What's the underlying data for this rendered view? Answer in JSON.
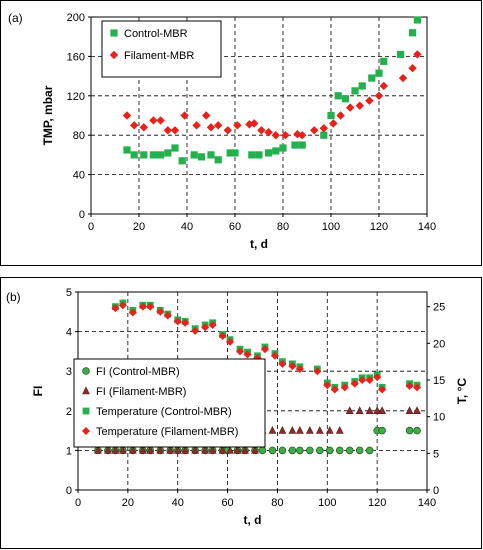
{
  "figure": {
    "panels": [
      "(a)",
      "(b)"
    ]
  },
  "colors": {
    "control": "#22b14c",
    "filament": "#e8221b",
    "fi_control": "#3fae49",
    "fi_filament": "#8b2c2c",
    "grid": "#000000"
  },
  "chart_data": [
    {
      "type": "scatter",
      "panel": "(a)",
      "xlabel": "t, d",
      "ylabel": "TMP, mbar",
      "xlim": [
        0,
        140
      ],
      "ylim": [
        0,
        200
      ],
      "xticks": [
        0,
        20,
        40,
        60,
        80,
        100,
        120,
        140
      ],
      "yticks": [
        0,
        40,
        80,
        120,
        160,
        200
      ],
      "grid": "dashed",
      "legend_position": "top-left",
      "series": [
        {
          "name": "Control-MBR",
          "marker": "square",
          "x": [
            15,
            18,
            22,
            26,
            29,
            32,
            35,
            38,
            43,
            46,
            50,
            53,
            58,
            60,
            67,
            70,
            74,
            77,
            80,
            85,
            88,
            97,
            100,
            103,
            106,
            110,
            113,
            117,
            120,
            122,
            129,
            134,
            136
          ],
          "y": [
            65,
            60,
            60,
            60,
            60,
            62,
            67,
            54,
            60,
            58,
            60,
            55,
            62,
            62,
            60,
            60,
            62,
            64,
            67,
            70,
            70,
            80,
            100,
            120,
            117,
            125,
            130,
            138,
            143,
            155,
            162,
            184,
            197
          ]
        },
        {
          "name": "Filament-MBR",
          "marker": "diamond",
          "x": [
            15,
            18,
            22,
            26,
            29,
            32,
            35,
            39,
            44,
            48,
            50,
            53,
            57,
            61,
            66,
            68,
            71,
            74,
            77,
            81,
            86,
            88,
            93,
            97,
            101,
            104,
            108,
            112,
            116,
            120,
            122,
            130,
            134,
            136
          ],
          "y": [
            100,
            90,
            88,
            95,
            95,
            85,
            85,
            100,
            90,
            100,
            88,
            90,
            85,
            90,
            91,
            92,
            85,
            83,
            80,
            80,
            81,
            80,
            85,
            87,
            92,
            100,
            108,
            110,
            115,
            120,
            130,
            138,
            148,
            162
          ]
        }
      ]
    },
    {
      "type": "scatter",
      "panel": "(b)",
      "xlabel": "t, d",
      "ylabel": "FI",
      "y2label": "T, °C",
      "xlim": [
        0,
        140
      ],
      "ylim": [
        0,
        5
      ],
      "y2lim": [
        0,
        27
      ],
      "xticks": [
        0,
        20,
        40,
        60,
        80,
        100,
        120,
        140
      ],
      "yticks": [
        0,
        1,
        2,
        3,
        4,
        5
      ],
      "y2ticks": [
        0,
        5,
        10,
        15,
        20,
        25
      ],
      "grid": "dashed",
      "legend_position": "bottom-left",
      "series": [
        {
          "name": "FI (Control-MBR)",
          "marker": "circle",
          "axis": "left",
          "x": [
            8,
            12,
            15,
            18,
            22,
            26,
            29,
            33,
            37,
            40,
            43,
            47,
            51,
            54,
            58,
            60,
            64,
            67,
            71,
            74,
            78,
            82,
            86,
            89,
            93,
            97,
            101,
            105,
            109,
            113,
            117,
            120,
            122,
            133,
            136
          ],
          "y": [
            1,
            1,
            1,
            1,
            1,
            1,
            1,
            1,
            1,
            1,
            1,
            1,
            1,
            1,
            1,
            1,
            1,
            1,
            1,
            1,
            1,
            1,
            1,
            1,
            1,
            1,
            1,
            1,
            1,
            1,
            1,
            1.5,
            1.5,
            1.5,
            1.5
          ]
        },
        {
          "name": "FI (Filament-MBR)",
          "marker": "triangle",
          "axis": "left",
          "x": [
            8,
            12,
            15,
            18,
            22,
            26,
            29,
            33,
            37,
            40,
            43,
            47,
            51,
            54,
            58,
            61,
            64,
            67,
            71,
            74,
            78,
            82,
            86,
            89,
            93,
            97,
            101,
            105,
            109,
            113,
            117,
            120,
            122,
            133,
            136
          ],
          "y": [
            1,
            1,
            1,
            1,
            1,
            1,
            1,
            1,
            1,
            1,
            1,
            1,
            1,
            1,
            1,
            1,
            1,
            1,
            1,
            1.5,
            1.5,
            1.5,
            1.5,
            1.5,
            1.5,
            1.5,
            1.5,
            1.5,
            2,
            2,
            2,
            2,
            2,
            2,
            2
          ]
        },
        {
          "name": "Temperature (Control-MBR)",
          "marker": "square",
          "axis": "right",
          "x": [
            15,
            18,
            22,
            26,
            29,
            33,
            36,
            40,
            43,
            47,
            51,
            54,
            58,
            61,
            65,
            68,
            72,
            75,
            79,
            82,
            86,
            89,
            96,
            100,
            103,
            107,
            111,
            114,
            117,
            120,
            122,
            133,
            136
          ],
          "y": [
            25.0,
            25.5,
            24.5,
            25.2,
            25.2,
            24.5,
            24.0,
            23.2,
            23.0,
            22.0,
            22.5,
            22.8,
            21.2,
            20.5,
            19.2,
            18.8,
            18.3,
            19.5,
            18.6,
            17.5,
            17.2,
            16.8,
            16.5,
            14.6,
            14.0,
            14.3,
            14.8,
            15.3,
            15.3,
            15.7,
            14.0,
            14.5,
            14.3
          ]
        },
        {
          "name": "Temperature (Filament-MBR)",
          "marker": "diamond",
          "axis": "right",
          "x": [
            15,
            18,
            22,
            26,
            29,
            33,
            36,
            40,
            43,
            47,
            51,
            54,
            58,
            61,
            65,
            68,
            72,
            75,
            79,
            82,
            86,
            89,
            96,
            100,
            103,
            107,
            111,
            114,
            117,
            120,
            122,
            133,
            136
          ],
          "y": [
            24.8,
            25.2,
            24.2,
            25.0,
            25.0,
            24.3,
            23.8,
            23.0,
            22.8,
            21.7,
            22.2,
            22.5,
            21.0,
            20.2,
            18.9,
            18.5,
            18.0,
            19.2,
            18.3,
            17.2,
            16.9,
            16.5,
            16.2,
            14.3,
            13.7,
            14.0,
            14.5,
            15.0,
            15.0,
            15.4,
            13.7,
            14.2,
            14.0
          ]
        }
      ]
    }
  ]
}
